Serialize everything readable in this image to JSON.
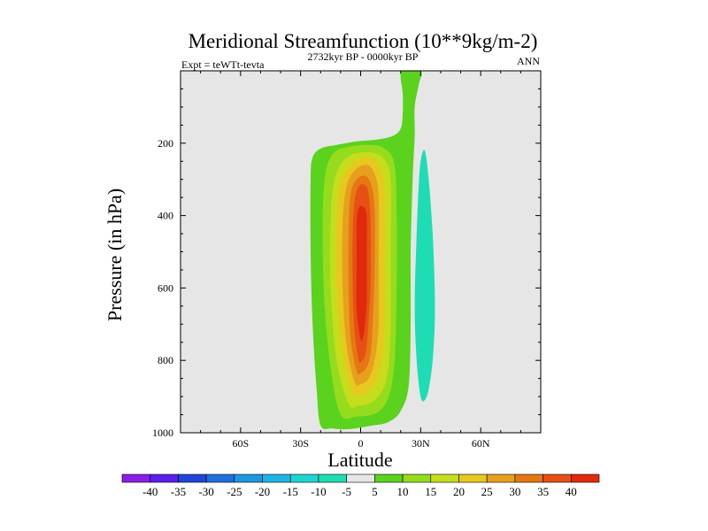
{
  "chart_data": {
    "type": "contour",
    "title": "Meridional Streamfunction (10**9kg/m-2)",
    "subtitle_left": "Expt = teWTt-tevta",
    "subtitle_center": "2732kyr BP - 0000kyr BP",
    "subtitle_right": "ANN",
    "xlabel": "Latitude",
    "ylabel": "Pressure (in hPa)",
    "xlim": [
      -90,
      90
    ],
    "ylim": [
      0,
      1000
    ],
    "y_inverted": true,
    "x_ticks": [
      {
        "value": -60,
        "label": "60S"
      },
      {
        "value": -30,
        "label": "30S"
      },
      {
        "value": 0,
        "label": "0"
      },
      {
        "value": 30,
        "label": "30N"
      },
      {
        "value": 60,
        "label": "60N"
      }
    ],
    "y_ticks": [
      {
        "value": 200,
        "label": "200"
      },
      {
        "value": 400,
        "label": "400"
      },
      {
        "value": 600,
        "label": "600"
      },
      {
        "value": 800,
        "label": "800"
      },
      {
        "value": 1000,
        "label": "1000"
      }
    ],
    "background_color": "#e6e6e6",
    "colorbar": {
      "levels": [
        "-40",
        "-35",
        "-30",
        "-25",
        "-20",
        "-15",
        "-10",
        "-5",
        "5",
        "10",
        "15",
        "20",
        "25",
        "30",
        "35",
        "40"
      ],
      "colors": [
        "#8a1ee6",
        "#5a1ee6",
        "#2046d8",
        "#1e6edc",
        "#1e96e0",
        "#1eb4e6",
        "#20d2d2",
        "#1edcb4",
        "#e6e6e6",
        "#5ad21e",
        "#96dc1e",
        "#c8dc1e",
        "#e6c81e",
        "#e6a01e",
        "#e67814",
        "#e65014",
        "#e02a0c"
      ]
    },
    "contours": [
      {
        "value": 5,
        "color": "#5ad21e",
        "points": [
          [
            -20,
            980
          ],
          [
            -22,
            880
          ],
          [
            -24,
            700
          ],
          [
            -25,
            500
          ],
          [
            -25,
            300
          ],
          [
            -24,
            240
          ],
          [
            -20,
            215
          ],
          [
            -12,
            205
          ],
          [
            -2,
            195
          ],
          [
            8,
            190
          ],
          [
            16,
            180
          ],
          [
            20,
            160
          ],
          [
            21,
            120
          ],
          [
            21,
            60
          ],
          [
            20,
            20
          ],
          [
            21,
            0
          ],
          [
            30,
            0
          ],
          [
            29,
            40
          ],
          [
            27,
            100
          ],
          [
            27,
            180
          ],
          [
            26,
            300
          ],
          [
            25,
            500
          ],
          [
            25,
            700
          ],
          [
            24,
            870
          ],
          [
            20,
            940
          ],
          [
            14,
            970
          ],
          [
            6,
            980
          ],
          [
            -6,
            990
          ],
          [
            -14,
            988
          ]
        ]
      },
      {
        "value": 10,
        "color": "#96dc1e",
        "points": [
          [
            -10,
            950
          ],
          [
            -15,
            820
          ],
          [
            -18,
            650
          ],
          [
            -19,
            450
          ],
          [
            -18,
            300
          ],
          [
            -14,
            230
          ],
          [
            -6,
            210
          ],
          [
            4,
            205
          ],
          [
            12,
            215
          ],
          [
            17,
            260
          ],
          [
            18,
            400
          ],
          [
            18,
            600
          ],
          [
            17,
            800
          ],
          [
            14,
            900
          ],
          [
            8,
            945
          ],
          [
            -2,
            955
          ]
        ]
      },
      {
        "value": 15,
        "color": "#c8dc1e",
        "points": [
          [
            -6,
            920
          ],
          [
            -12,
            800
          ],
          [
            -15,
            600
          ],
          [
            -15,
            420
          ],
          [
            -13,
            300
          ],
          [
            -7,
            240
          ],
          [
            3,
            225
          ],
          [
            11,
            240
          ],
          [
            15,
            300
          ],
          [
            15,
            500
          ],
          [
            15,
            700
          ],
          [
            13,
            850
          ],
          [
            7,
            910
          ],
          [
            -1,
            925
          ]
        ]
      },
      {
        "value": 20,
        "color": "#e6c81e",
        "points": [
          [
            -4,
            890
          ],
          [
            -9,
            780
          ],
          [
            -12,
            600
          ],
          [
            -12,
            420
          ],
          [
            -10,
            310
          ],
          [
            -4,
            255
          ],
          [
            3,
            240
          ],
          [
            9,
            260
          ],
          [
            12,
            330
          ],
          [
            12,
            520
          ],
          [
            12,
            700
          ],
          [
            10,
            820
          ],
          [
            5,
            880
          ],
          [
            0,
            895
          ]
        ]
      },
      {
        "value": 25,
        "color": "#e6a01e",
        "points": [
          [
            -3,
            860
          ],
          [
            -7,
            760
          ],
          [
            -9,
            600
          ],
          [
            -9,
            420
          ],
          [
            -7,
            320
          ],
          [
            -3,
            275
          ],
          [
            3,
            260
          ],
          [
            7,
            285
          ],
          [
            9,
            350
          ],
          [
            9,
            540
          ],
          [
            9,
            700
          ],
          [
            7,
            800
          ],
          [
            4,
            850
          ],
          [
            0,
            865
          ]
        ]
      },
      {
        "value": 30,
        "color": "#e67814",
        "points": [
          [
            -2,
            830
          ],
          [
            -5,
            740
          ],
          [
            -6,
            600
          ],
          [
            -6,
            440
          ],
          [
            -5,
            340
          ],
          [
            -2,
            300
          ],
          [
            2,
            290
          ],
          [
            5,
            310
          ],
          [
            7,
            380
          ],
          [
            7,
            560
          ],
          [
            6,
            700
          ],
          [
            5,
            780
          ],
          [
            3,
            820
          ],
          [
            0,
            835
          ]
        ]
      },
      {
        "value": 35,
        "color": "#e65014",
        "points": [
          [
            -1,
            800
          ],
          [
            -3,
            720
          ],
          [
            -4,
            600
          ],
          [
            -4,
            450
          ],
          [
            -3,
            360
          ],
          [
            -1,
            320
          ],
          [
            2,
            315
          ],
          [
            4,
            340
          ],
          [
            5,
            420
          ],
          [
            5,
            580
          ],
          [
            4,
            690
          ],
          [
            3,
            760
          ],
          [
            2,
            790
          ],
          [
            0,
            805
          ]
        ]
      },
      {
        "value": 40,
        "color": "#e02a0c",
        "points": [
          [
            0,
            740
          ],
          [
            -2,
            660
          ],
          [
            -2,
            520
          ],
          [
            -2,
            420
          ],
          [
            -1,
            380
          ],
          [
            1,
            375
          ],
          [
            3,
            400
          ],
          [
            3,
            520
          ],
          [
            3,
            640
          ],
          [
            2,
            710
          ],
          [
            1,
            740
          ]
        ]
      },
      {
        "value": -5,
        "color": "#1edcb4",
        "points": [
          [
            32,
            220
          ],
          [
            34,
            300
          ],
          [
            36,
            450
          ],
          [
            37,
            600
          ],
          [
            37,
            700
          ],
          [
            36,
            800
          ],
          [
            34,
            880
          ],
          [
            32,
            910
          ],
          [
            30,
            900
          ],
          [
            28,
            800
          ],
          [
            27,
            650
          ],
          [
            28,
            450
          ],
          [
            29,
            320
          ],
          [
            30,
            250
          ]
        ]
      }
    ]
  }
}
